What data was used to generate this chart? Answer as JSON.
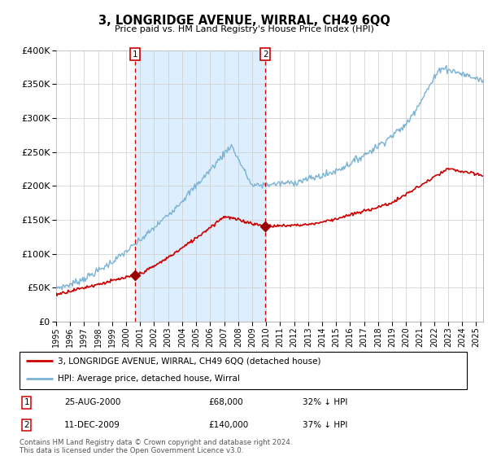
{
  "title": "3, LONGRIDGE AVENUE, WIRRAL, CH49 6QQ",
  "subtitle": "Price paid vs. HM Land Registry's House Price Index (HPI)",
  "legend_line1": "3, LONGRIDGE AVENUE, WIRRAL, CH49 6QQ (detached house)",
  "legend_line2": "HPI: Average price, detached house, Wirral",
  "sale1_date": "25-AUG-2000",
  "sale1_price": "£68,000",
  "sale1_hpi": "32% ↓ HPI",
  "sale2_date": "11-DEC-2009",
  "sale2_price": "£140,000",
  "sale2_hpi": "37% ↓ HPI",
  "footer": "Contains HM Land Registry data © Crown copyright and database right 2024.\nThis data is licensed under the Open Government Licence v3.0.",
  "hpi_color": "#7ab3d4",
  "price_color": "#cc0000",
  "shade_color": "#ddeeff",
  "vline_color": "#cc0000",
  "ylim": [
    0,
    400000
  ],
  "yticks": [
    0,
    50000,
    100000,
    150000,
    200000,
    250000,
    300000,
    350000,
    400000
  ],
  "sale1_x": 2000.65,
  "sale1_y": 68000,
  "sale2_x": 2009.94,
  "sale2_y": 140000,
  "xlim_left": 1995.0,
  "xlim_right": 2025.5
}
